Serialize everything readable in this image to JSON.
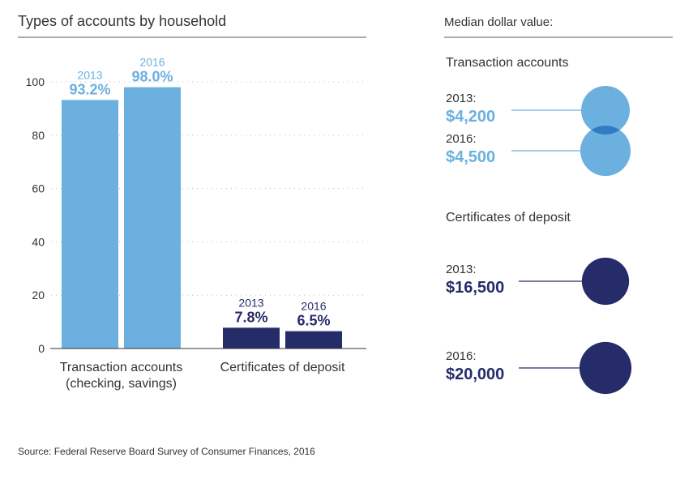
{
  "colors": {
    "light": "#6cb0e0",
    "dark": "#262c6a",
    "overlap_light": "#2f7cc4",
    "overlap_dark": "#0a0d30",
    "text": "#333333",
    "rule": "#555555"
  },
  "source": "Source: Federal Reserve Board Survey of Consumer Finances, 2016",
  "chart_data": [
    {
      "type": "bar",
      "title": "Types of accounts by household",
      "ylim": [
        0,
        100
      ],
      "yticks": [
        "0",
        "20",
        "40",
        "60",
        "80",
        "100"
      ],
      "grid": true,
      "categories": [
        {
          "label_lines": [
            "Transaction accounts",
            "(checking, savings)"
          ],
          "color": "light",
          "series": [
            {
              "year": "2013",
              "value": 93.2,
              "label": "93.2%"
            },
            {
              "year": "2016",
              "value": 98.0,
              "label": "98.0%"
            }
          ]
        },
        {
          "label_lines": [
            "Certificates of deposit"
          ],
          "color": "dark",
          "series": [
            {
              "year": "2013",
              "value": 7.8,
              "label": "7.8%"
            },
            {
              "year": "2016",
              "value": 6.5,
              "label": "6.5%"
            }
          ]
        }
      ]
    },
    {
      "type": "bubble",
      "title": "Median dollar value:",
      "groups": [
        {
          "name": "Transaction accounts",
          "color": "light",
          "items": [
            {
              "year": "2013:",
              "value": 4200,
              "label": "$4,200"
            },
            {
              "year": "2016:",
              "value": 4500,
              "label": "$4,500"
            }
          ]
        },
        {
          "name": "Certificates of deposit",
          "color": "dark",
          "items": [
            {
              "year": "2013:",
              "value": 16500,
              "label": "$16,500"
            },
            {
              "year": "2016:",
              "value": 20000,
              "label": "$20,000"
            }
          ]
        }
      ]
    }
  ]
}
